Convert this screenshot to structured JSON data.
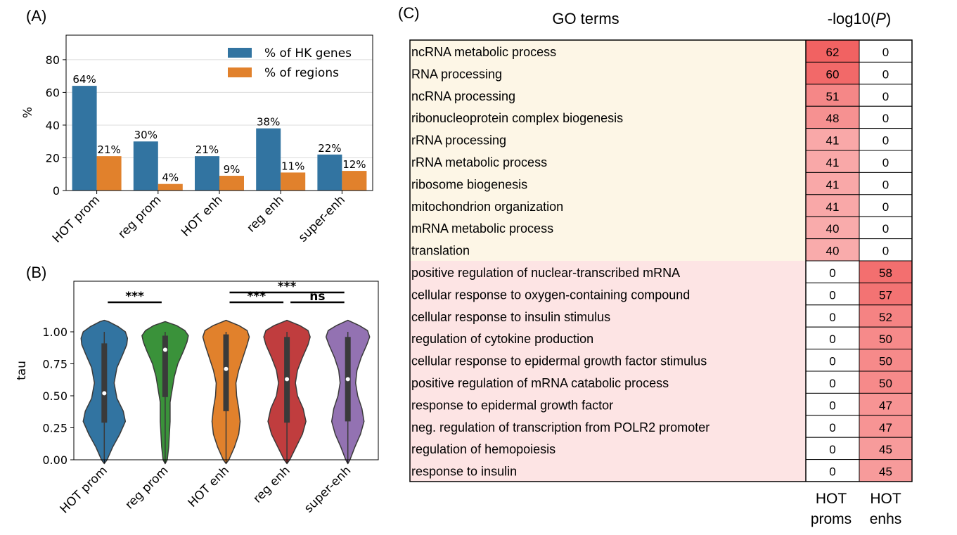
{
  "panels": {
    "a_label": "(A)",
    "b_label": "(B)",
    "c_label": "(C)"
  },
  "chart_data": [
    {
      "id": "A",
      "type": "bar",
      "categories": [
        "HOT prom",
        "reg prom",
        "HOT enh",
        "reg enh",
        "super-enh"
      ],
      "series": [
        {
          "name": "% of HK genes",
          "color": "#3274a1",
          "values": [
            64,
            30,
            21,
            38,
            22
          ],
          "labels": [
            "64%",
            "30%",
            "21%",
            "38%",
            "22%"
          ]
        },
        {
          "name": "% of regions",
          "color": "#e1812c",
          "values": [
            21,
            4,
            9,
            11,
            12
          ],
          "labels": [
            "21%",
            "4%",
            "9%",
            "11%",
            "12%"
          ]
        }
      ],
      "ylabel": "%",
      "ylim": [
        0,
        95
      ],
      "yticks": [
        0,
        20,
        40,
        60,
        80
      ],
      "ytick_labels": [
        "0",
        "20",
        "40",
        "60",
        "80"
      ],
      "grid": true,
      "legend": "top-right"
    },
    {
      "id": "B",
      "type": "violin",
      "categories": [
        "HOT prom",
        "reg prom",
        "HOT enh",
        "reg enh",
        "super-enh"
      ],
      "colors": [
        "#3274a1",
        "#3a923a",
        "#e1812c",
        "#c03d3e",
        "#9372b2"
      ],
      "medians": [
        0.52,
        0.86,
        0.71,
        0.63,
        0.63
      ],
      "q1": [
        0.29,
        0.49,
        0.38,
        0.29,
        0.3
      ],
      "q3": [
        0.91,
        0.97,
        0.98,
        0.96,
        0.96
      ],
      "whisker_low": [
        0.0,
        0.0,
        0.0,
        0.0,
        0.0
      ],
      "whisker_high": [
        1.0,
        1.0,
        1.0,
        1.0,
        1.0
      ],
      "ylabel": "tau",
      "ylim": [
        0,
        1.1
      ],
      "yticks": [
        0,
        0.25,
        0.5,
        0.75,
        1.0
      ],
      "ytick_labels": [
        "0.00",
        "0.25",
        "0.50",
        "0.75",
        "1.00"
      ],
      "significance": [
        {
          "from": 0,
          "to": 1,
          "text": "***",
          "level": 1
        },
        {
          "from": 2,
          "to": 3,
          "text": "***",
          "level": 1
        },
        {
          "from": 3,
          "to": 4,
          "text": "ns",
          "level": 1
        },
        {
          "from": 2,
          "to": 4,
          "text": "***",
          "level": 2
        }
      ]
    },
    {
      "id": "C",
      "type": "table",
      "header_terms": "GO terms",
      "header_value_prefix": "-log10(",
      "header_value_italic": "P",
      "header_value_suffix": ")",
      "columns": [
        {
          "line1": "HOT",
          "line2": "proms"
        },
        {
          "line1": "HOT",
          "line2": "enhs"
        }
      ],
      "groups": [
        {
          "background": "#fdf6e6",
          "rows": [
            {
              "term": "ncRNA metabolic process",
              "proms": 62,
              "enhs": 0
            },
            {
              "term": "RNA processing",
              "proms": 60,
              "enhs": 0
            },
            {
              "term": "ncRNA processing",
              "proms": 51,
              "enhs": 0
            },
            {
              "term": "ribonucleoprotein complex biogenesis",
              "proms": 48,
              "enhs": 0
            },
            {
              "term": "rRNA processing",
              "proms": 41,
              "enhs": 0
            },
            {
              "term": "rRNA metabolic process",
              "proms": 41,
              "enhs": 0
            },
            {
              "term": "ribosome biogenesis",
              "proms": 41,
              "enhs": 0
            },
            {
              "term": "mitochondrion organization",
              "proms": 41,
              "enhs": 0
            },
            {
              "term": "mRNA metabolic process",
              "proms": 40,
              "enhs": 0
            },
            {
              "term": "translation",
              "proms": 40,
              "enhs": 0
            }
          ]
        },
        {
          "background": "#fde4e4",
          "rows": [
            {
              "term": "positive regulation of nuclear-transcribed mRNA",
              "proms": 0,
              "enhs": 58
            },
            {
              "term": "cellular response to oxygen-containing compound",
              "proms": 0,
              "enhs": 57
            },
            {
              "term": "cellular response to insulin stimulus",
              "proms": 0,
              "enhs": 52
            },
            {
              "term": "regulation of cytokine production",
              "proms": 0,
              "enhs": 50
            },
            {
              "term": "cellular response to epidermal growth factor stimulus",
              "proms": 0,
              "enhs": 50
            },
            {
              "term": "positive regulation of mRNA catabolic process",
              "proms": 0,
              "enhs": 50
            },
            {
              "term": "response to epidermal growth factor",
              "proms": 0,
              "enhs": 47
            },
            {
              "term": "neg. regulation of transcription from POLR2 promoter",
              "proms": 0,
              "enhs": 47
            },
            {
              "term": "regulation of hemopoiesis",
              "proms": 0,
              "enhs": 45
            },
            {
              "term": "response to insulin",
              "proms": 0,
              "enhs": 45
            }
          ]
        }
      ]
    }
  ]
}
